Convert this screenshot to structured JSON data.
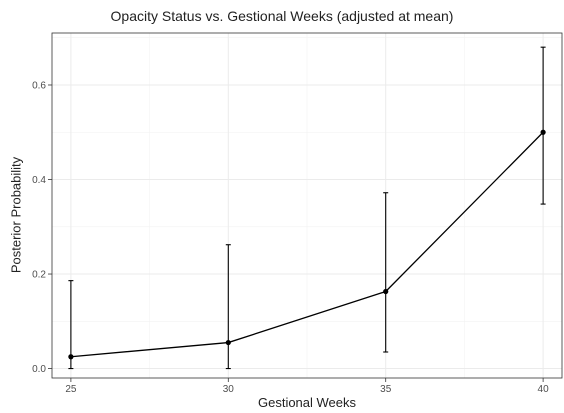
{
  "chart_data": {
    "type": "line",
    "title": "Opacity Status vs. Gestional Weeks (adjusted at mean)",
    "xlabel": "Gestional Weeks",
    "ylabel": "Posterior Probability",
    "x": [
      25,
      30,
      35,
      40
    ],
    "series": [
      {
        "values": [
          0.025,
          0.055,
          0.163,
          0.5
        ],
        "lower": [
          0.0,
          0.0,
          0.035,
          0.348
        ],
        "upper": [
          0.186,
          0.262,
          0.372,
          0.68
        ]
      }
    ],
    "xlim": [
      24.4,
      40.6
    ],
    "ylim": [
      -0.02,
      0.71
    ],
    "xticks": [
      25,
      30,
      35,
      40
    ],
    "yticks": [
      0.0,
      0.2,
      0.4,
      0.6
    ],
    "ytick_labels": [
      "0.0",
      "0.2",
      "0.4",
      "0.6"
    ],
    "grid": true,
    "legend": "none",
    "colors": {
      "line": "#000000",
      "grid": "#ebebeb",
      "frame": "#333333"
    }
  }
}
